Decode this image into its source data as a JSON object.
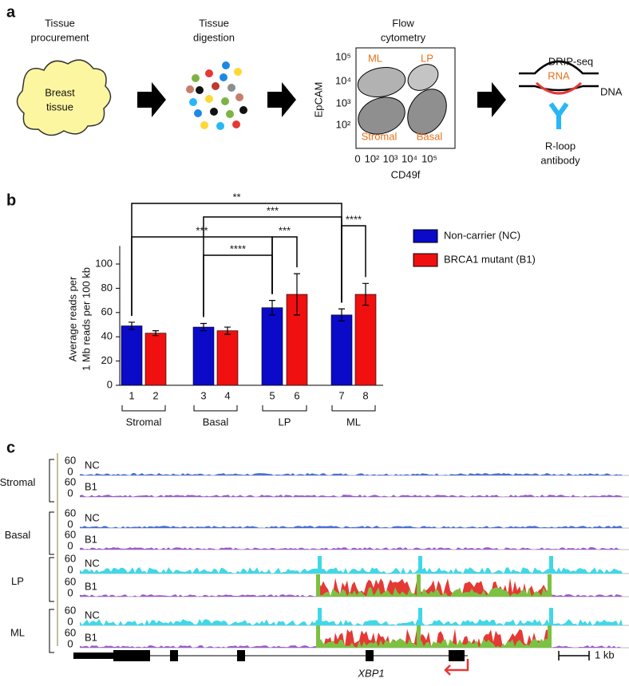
{
  "panel_a": {
    "label": "a",
    "steps": [
      [
        "Tissue",
        "procurement"
      ],
      [
        "Tissue",
        "digestion"
      ],
      [
        "Flow",
        "cytometry"
      ],
      [
        "DRIP-seq"
      ]
    ],
    "tissue": [
      "Breast",
      "tissue"
    ],
    "flow": {
      "ylabel": "EpCAM",
      "xlabel": "CD49f",
      "xticks": [
        "0",
        "10²",
        "10³",
        "10⁴",
        "10⁵"
      ],
      "yticks": [
        "10²",
        "10³",
        "10⁴",
        "10⁵"
      ],
      "populations": [
        "ML",
        "LP",
        "Stromal",
        "Basal"
      ]
    },
    "drip": {
      "rna": "RNA",
      "dna": "DNA",
      "antibody": [
        "R-loop",
        "antibody"
      ]
    }
  },
  "chart_data": {
    "type": "bar",
    "label": "b",
    "ylabel": [
      "Average reads per",
      "1 Mb reads per 100 kb"
    ],
    "categories": [
      "Stromal",
      "Basal",
      "LP",
      "ML"
    ],
    "series": [
      {
        "name": "Non-carrier (NC)",
        "color": "#0a0ac8",
        "values": [
          49,
          48,
          64,
          58
        ],
        "errors": [
          3,
          3,
          6,
          5
        ],
        "bar_numbers": [
          1,
          3,
          5,
          7
        ]
      },
      {
        "name": "BRCA1 mutant (B1)",
        "color": "#f01010",
        "values": [
          43,
          45,
          75,
          75
        ],
        "errors": [
          2,
          3,
          17,
          9
        ],
        "bar_numbers": [
          2,
          4,
          6,
          8
        ]
      }
    ],
    "ylim": [
      0,
      115
    ],
    "yticks": [
      0,
      20,
      40,
      60,
      80,
      100
    ],
    "significance": [
      "**",
      "***",
      "****",
      "***",
      "***",
      "****"
    ]
  },
  "panel_c": {
    "label": "c",
    "scale": [
      60,
      0
    ],
    "groups": [
      {
        "name": "Stromal",
        "samples": [
          "NC",
          "B1"
        ]
      },
      {
        "name": "Basal",
        "samples": [
          "NC",
          "B1"
        ]
      },
      {
        "name": "LP",
        "samples": [
          "NC",
          "B1"
        ]
      },
      {
        "name": "ML",
        "samples": [
          "NC",
          "B1"
        ]
      }
    ],
    "gene": "XBP1",
    "scale_bar": "1 kb"
  }
}
